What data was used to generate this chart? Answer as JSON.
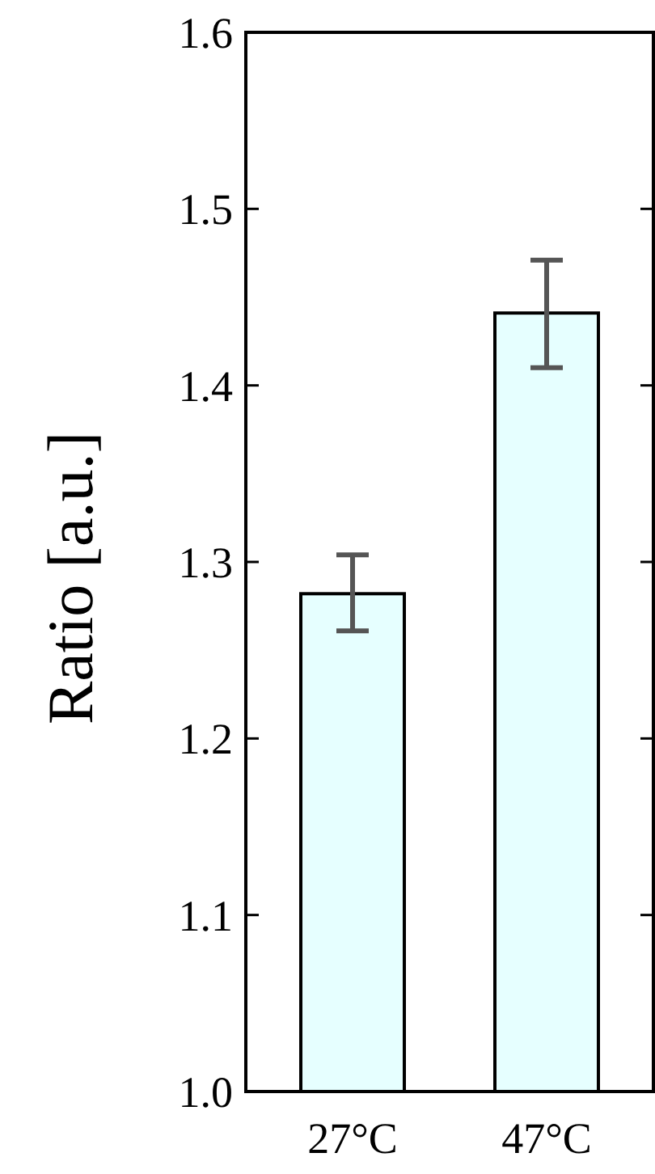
{
  "chart_data": {
    "type": "bar",
    "ylabel": "Ratio [a.u.]",
    "categories": [
      "27°C",
      "47°C"
    ],
    "values": [
      1.282,
      1.441
    ],
    "errors": [
      [
        1.261,
        1.304
      ],
      [
        1.41,
        1.471
      ]
    ],
    "color": "#e6ffff",
    "ylim": [
      1.0,
      1.6
    ],
    "yticks": [
      {
        "value": 1.0,
        "label": "1.0"
      },
      1.1,
      1.2,
      1.3,
      1.4,
      1.5,
      {
        "value": 1.6,
        "label": "1.6"
      }
    ],
    "grid": false
  }
}
